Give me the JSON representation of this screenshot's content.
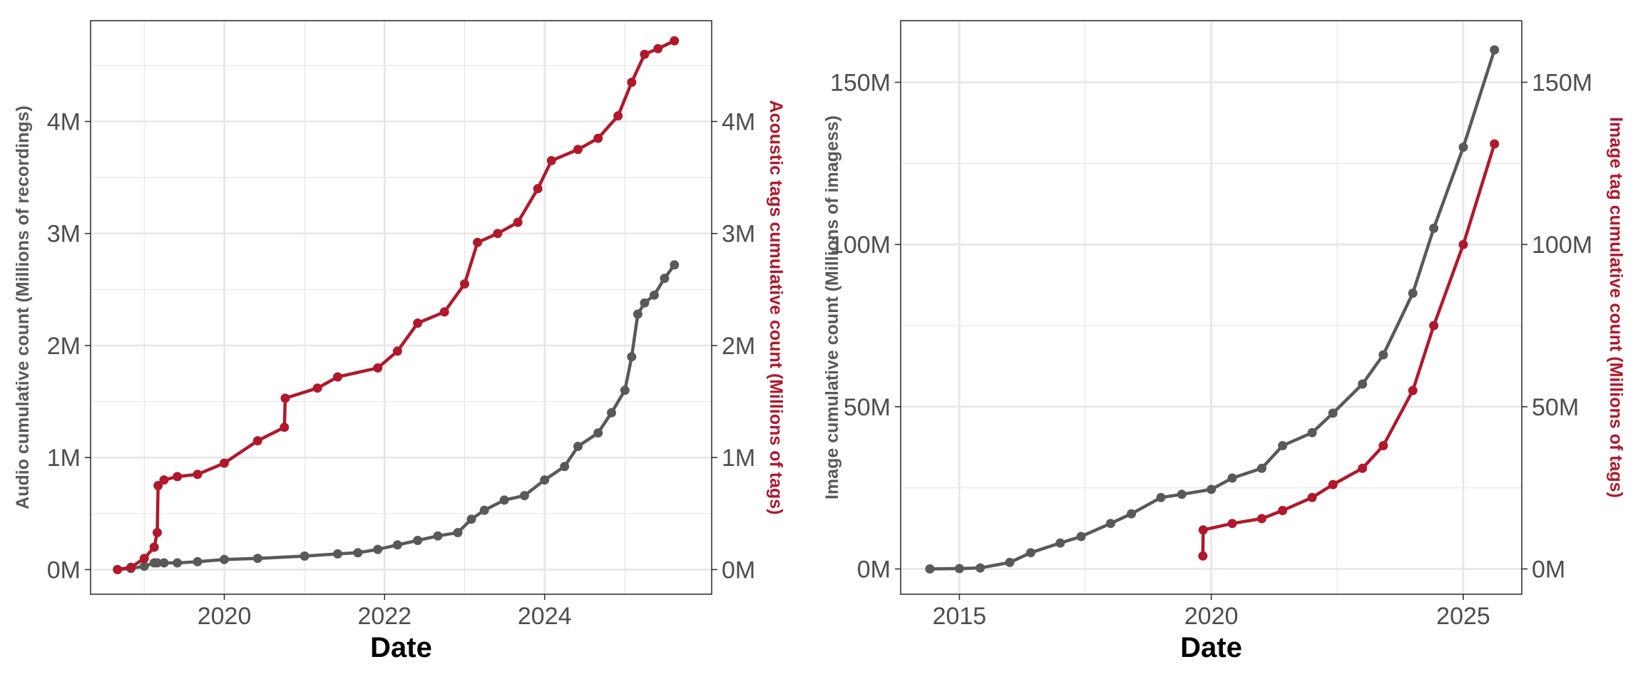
{
  "colors": {
    "audio_series": "#595959",
    "tag_series": "#B2182B",
    "grid": "#E6E6E6",
    "panel_border": "#333333",
    "tick_text": "#4D4D4D",
    "title_text": "#000000"
  },
  "chart_data": [
    {
      "type": "line",
      "markers": "circle",
      "x_type": "date",
      "xlabel": "Date",
      "ylabel": "Audio cumulative count (Millions of recordings)",
      "ylabel_right": "Acoustic tags cumulative count (Millions of tags)",
      "xlim": [
        "2018-05-01",
        "2026-02-01"
      ],
      "ylim": [
        -0.22,
        4.9
      ],
      "ylim_right": [
        -0.22,
        4.9
      ],
      "x_ticks": [
        {
          "date": "2020-01-01",
          "label": "2020"
        },
        {
          "date": "2022-01-01",
          "label": "2022"
        },
        {
          "date": "2024-01-01",
          "label": "2024"
        }
      ],
      "x_minor_ticks": [
        "2019-01-01",
        "2021-01-01",
        "2023-01-01",
        "2025-01-01"
      ],
      "y_ticks": [
        {
          "value": 0,
          "label": "0M"
        },
        {
          "value": 1,
          "label": "1M"
        },
        {
          "value": 2,
          "label": "2M"
        },
        {
          "value": 3,
          "label": "3M"
        },
        {
          "value": 4,
          "label": "4M"
        }
      ],
      "y_minor_ticks": [
        0.5,
        1.5,
        2.5,
        3.5,
        4.5
      ],
      "grid": true,
      "series": [
        {
          "color": "#595959",
          "axis": "left",
          "points": [
            [
              "2018-09-01",
              0.0
            ],
            [
              "2018-11-01",
              0.01
            ],
            [
              "2019-01-01",
              0.03
            ],
            [
              "2019-02-15",
              0.06
            ],
            [
              "2019-03-01",
              0.06
            ],
            [
              "2019-04-01",
              0.06
            ],
            [
              "2019-06-01",
              0.06
            ],
            [
              "2019-09-01",
              0.07
            ],
            [
              "2020-01-01",
              0.09
            ],
            [
              "2020-06-01",
              0.1
            ],
            [
              "2021-01-01",
              0.12
            ],
            [
              "2021-06-01",
              0.14
            ],
            [
              "2021-09-01",
              0.15
            ],
            [
              "2021-12-01",
              0.18
            ],
            [
              "2022-03-01",
              0.22
            ],
            [
              "2022-06-01",
              0.26
            ],
            [
              "2022-09-01",
              0.3
            ],
            [
              "2022-12-01",
              0.33
            ],
            [
              "2023-02-01",
              0.45
            ],
            [
              "2023-04-01",
              0.53
            ],
            [
              "2023-07-01",
              0.62
            ],
            [
              "2023-10-01",
              0.66
            ],
            [
              "2024-01-01",
              0.8
            ],
            [
              "2024-04-01",
              0.92
            ],
            [
              "2024-06-01",
              1.1
            ],
            [
              "2024-09-01",
              1.22
            ],
            [
              "2024-11-01",
              1.4
            ],
            [
              "2025-01-01",
              1.6
            ],
            [
              "2025-02-01",
              1.9
            ],
            [
              "2025-03-01",
              2.28
            ],
            [
              "2025-04-01",
              2.38
            ],
            [
              "2025-05-15",
              2.45
            ],
            [
              "2025-07-01",
              2.6
            ],
            [
              "2025-08-15",
              2.72
            ]
          ]
        },
        {
          "color": "#B2182B",
          "axis": "right",
          "points": [
            [
              "2018-09-01",
              0.0
            ],
            [
              "2018-11-01",
              0.02
            ],
            [
              "2019-01-01",
              0.1
            ],
            [
              "2019-02-15",
              0.2
            ],
            [
              "2019-03-01",
              0.33
            ],
            [
              "2019-03-05",
              0.75
            ],
            [
              "2019-04-01",
              0.8
            ],
            [
              "2019-06-01",
              0.83
            ],
            [
              "2019-09-01",
              0.85
            ],
            [
              "2020-01-01",
              0.95
            ],
            [
              "2020-06-01",
              1.15
            ],
            [
              "2020-10-01",
              1.27
            ],
            [
              "2020-10-05",
              1.53
            ],
            [
              "2021-03-01",
              1.62
            ],
            [
              "2021-06-01",
              1.72
            ],
            [
              "2021-12-01",
              1.8
            ],
            [
              "2022-03-01",
              1.95
            ],
            [
              "2022-06-01",
              2.2
            ],
            [
              "2022-10-01",
              2.3
            ],
            [
              "2023-01-01",
              2.55
            ],
            [
              "2023-03-01",
              2.92
            ],
            [
              "2023-06-01",
              3.0
            ],
            [
              "2023-09-01",
              3.1
            ],
            [
              "2023-12-01",
              3.4
            ],
            [
              "2024-02-01",
              3.65
            ],
            [
              "2024-06-01",
              3.75
            ],
            [
              "2024-09-01",
              3.85
            ],
            [
              "2024-12-01",
              4.05
            ],
            [
              "2025-02-01",
              4.35
            ],
            [
              "2025-04-01",
              4.6
            ],
            [
              "2025-06-01",
              4.65
            ],
            [
              "2025-08-15",
              4.72
            ]
          ]
        }
      ]
    },
    {
      "type": "line",
      "markers": "circle",
      "x_type": "date",
      "xlabel": "Date",
      "ylabel": "Image cumulative count (Millions of imagess)",
      "ylabel_right": "Image tag cumulative count (Millions of tags)",
      "xlim": [
        "2013-11-01",
        "2026-03-01"
      ],
      "ylim": [
        -7.8,
        169
      ],
      "ylim_right": [
        -7.8,
        169
      ],
      "x_ticks": [
        {
          "date": "2015-01-01",
          "label": "2015"
        },
        {
          "date": "2020-01-01",
          "label": "2020"
        },
        {
          "date": "2025-01-01",
          "label": "2025"
        }
      ],
      "x_minor_ticks": [
        "2017-07-01",
        "2022-07-01"
      ],
      "y_ticks": [
        {
          "value": 0,
          "label": "0M"
        },
        {
          "value": 50,
          "label": "50M"
        },
        {
          "value": 100,
          "label": "100M"
        },
        {
          "value": 150,
          "label": "150M"
        }
      ],
      "y_minor_ticks": [
        25,
        75,
        125
      ],
      "grid": true,
      "series": [
        {
          "color": "#595959",
          "axis": "left",
          "points": [
            [
              "2014-06-01",
              0.0
            ],
            [
              "2015-01-01",
              0.1
            ],
            [
              "2015-06-01",
              0.3
            ],
            [
              "2016-01-01",
              2.0
            ],
            [
              "2016-06-01",
              5.0
            ],
            [
              "2017-01-01",
              8.0
            ],
            [
              "2017-06-01",
              10.0
            ],
            [
              "2018-01-01",
              14.0
            ],
            [
              "2018-06-01",
              17.0
            ],
            [
              "2019-01-01",
              22.0
            ],
            [
              "2019-06-01",
              23.0
            ],
            [
              "2020-01-01",
              24.5
            ],
            [
              "2020-06-01",
              28.0
            ],
            [
              "2021-01-01",
              31.0
            ],
            [
              "2021-06-01",
              38.0
            ],
            [
              "2022-01-01",
              42.0
            ],
            [
              "2022-06-01",
              48.0
            ],
            [
              "2023-01-01",
              57.0
            ],
            [
              "2023-06-01",
              66.0
            ],
            [
              "2024-01-01",
              85.0
            ],
            [
              "2024-06-01",
              105.0
            ],
            [
              "2025-01-01",
              130.0
            ],
            [
              "2025-08-15",
              160.0
            ]
          ]
        },
        {
          "color": "#B2182B",
          "axis": "right",
          "points": [
            [
              "2019-11-01",
              4.0
            ],
            [
              "2019-11-03",
              12.0
            ],
            [
              "2020-06-01",
              14.0
            ],
            [
              "2021-01-01",
              15.5
            ],
            [
              "2021-06-01",
              18.0
            ],
            [
              "2022-01-01",
              22.0
            ],
            [
              "2022-06-01",
              26.0
            ],
            [
              "2023-01-01",
              31.0
            ],
            [
              "2023-06-01",
              38.0
            ],
            [
              "2024-01-01",
              55.0
            ],
            [
              "2024-06-01",
              75.0
            ],
            [
              "2025-01-01",
              100.0
            ],
            [
              "2025-08-15",
              131.0
            ]
          ]
        }
      ]
    }
  ]
}
